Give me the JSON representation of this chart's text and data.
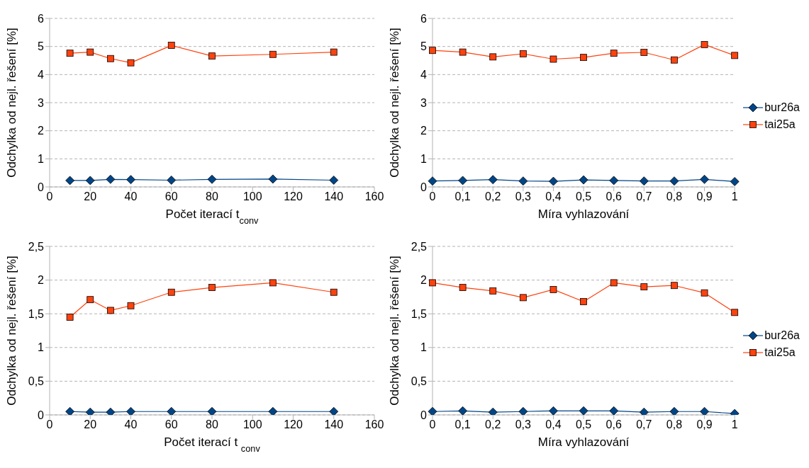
{
  "chart_data": [
    {
      "type": "line",
      "xlabel": "Počet iterací t$_{conv}$",
      "ylabel": "Odchylka od nejl. řešení [%]",
      "x": [
        10,
        20,
        30,
        40,
        60,
        80,
        110,
        140
      ],
      "xlim": [
        0,
        160
      ],
      "xticks": [
        0,
        20,
        40,
        60,
        80,
        100,
        120,
        140,
        160
      ],
      "ylim": [
        0,
        6
      ],
      "yticks": [
        0,
        1,
        2,
        3,
        4,
        5,
        6
      ],
      "grid": "y",
      "legend": false,
      "line_style": "solid",
      "series": [
        {
          "color": "#004586",
          "marker": "diamond",
          "values": [
            0.23,
            0.23,
            0.27,
            0.26,
            0.24,
            0.27,
            0.28,
            0.24
          ]
        },
        {
          "color": "#ff420e",
          "marker": "square",
          "values": [
            4.76,
            4.8,
            4.57,
            4.42,
            5.04,
            4.66,
            4.72,
            4.8
          ]
        }
      ]
    },
    {
      "type": "line",
      "xlabel": "Míra vyhlazování",
      "ylabel": "Odchylka od nejl. řešení [%]",
      "categories": [
        "0",
        "0,1",
        "0,2",
        "0,3",
        "0,4",
        "0,5",
        "0,6",
        "0,7",
        "0,8",
        "0,9",
        "1"
      ],
      "ylim": [
        0,
        6
      ],
      "yticks": [
        0,
        1,
        2,
        3,
        4,
        5,
        6
      ],
      "grid": "y",
      "legend": "right",
      "line_style": "solid",
      "series": [
        {
          "name": "bur26a",
          "color": "#004586",
          "marker": "diamond",
          "values": [
            0.21,
            0.23,
            0.26,
            0.21,
            0.2,
            0.25,
            0.23,
            0.21,
            0.21,
            0.27,
            0.19
          ]
        },
        {
          "name": "tai25a",
          "color": "#ff420e",
          "marker": "square",
          "values": [
            4.86,
            4.8,
            4.63,
            4.74,
            4.55,
            4.61,
            4.76,
            4.79,
            4.52,
            5.07,
            4.68
          ]
        }
      ]
    },
    {
      "type": "line",
      "xlabel": "Počet iterací t $_{conv}$",
      "ylabel": "Odchylka od nejl. řešení [%]",
      "x": [
        10,
        20,
        30,
        40,
        60,
        80,
        110,
        140
      ],
      "xlim": [
        0,
        160
      ],
      "xticks": [
        0,
        20,
        40,
        60,
        80,
        100,
        120,
        140,
        160
      ],
      "ylim": [
        0,
        2.5
      ],
      "yticks": [
        0,
        {
          "value": 0.5,
          "label": "0,5"
        },
        1,
        {
          "value": 1.5,
          "label": "1,5"
        },
        2,
        {
          "value": 2.5,
          "label": "2,5"
        }
      ],
      "grid": "y",
      "legend": false,
      "line_style": "solid",
      "series": [
        {
          "color": "#004586",
          "marker": "diamond",
          "values": [
            0.05,
            0.04,
            0.04,
            0.05,
            0.05,
            0.05,
            0.05,
            0.05
          ]
        },
        {
          "color": "#ff420e",
          "marker": "square",
          "values": [
            1.45,
            1.71,
            1.55,
            1.62,
            1.82,
            1.89,
            1.96,
            1.82
          ]
        }
      ]
    },
    {
      "type": "line",
      "xlabel": "Míra vyhlazování",
      "ylabel": "Odchylka od nejl. řešení [%]",
      "categories": [
        "0",
        "0,1",
        "0,2",
        "0,3",
        "0,4",
        "0,5",
        "0,6",
        "0,7",
        "0,8",
        "0,9",
        "1"
      ],
      "ylim": [
        0,
        2.5
      ],
      "yticks": [
        0,
        {
          "value": 0.5,
          "label": "0,5"
        },
        1,
        {
          "value": 1.5,
          "label": "1,5"
        },
        2,
        {
          "value": 2.5,
          "label": "2,5"
        }
      ],
      "grid": "y",
      "legend": "right",
      "line_style": "solid",
      "series": [
        {
          "name": "bur26a",
          "color": "#004586",
          "marker": "diamond",
          "values": [
            0.05,
            0.06,
            0.04,
            0.05,
            0.06,
            0.06,
            0.06,
            0.04,
            0.05,
            0.05,
            0.02
          ]
        },
        {
          "name": "tai25a",
          "color": "#ff420e",
          "marker": "square",
          "values": [
            1.96,
            1.89,
            1.84,
            1.74,
            1.86,
            1.68,
            1.96,
            1.9,
            1.92,
            1.81,
            1.52
          ]
        }
      ]
    }
  ]
}
